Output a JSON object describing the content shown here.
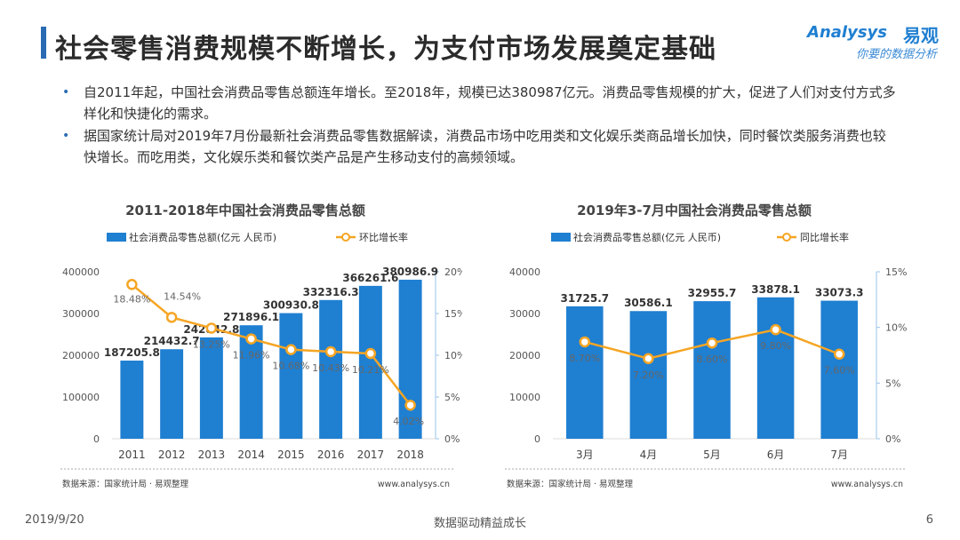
{
  "header": {
    "title": "社会零售消费规模不断增长，为支付市场发展奠定基础",
    "logo_en": "Analysys",
    "logo_cn": "易观",
    "logo_slogan": "你要的数据分析"
  },
  "bullets": [
    "自2011年起，中国社会消费品零售总额连年增长。至2018年，规模已达380987亿元。消费品零售规模的扩大，促进了人们对支付方式多样化和快捷化的需求。",
    "据国家统计局对2019年7月份最新社会消费品零售数据解读，消费品市场中吃用类和文化娱乐类商品增长加快，同时餐饮类服务消费也较快增长。而吃用类，文化娱乐类和餐饮类产品是产生移动支付的高频领域。"
  ],
  "footer": {
    "date": "2019/9/20",
    "center": "数据驱动精益成长",
    "page": "6"
  },
  "colors": {
    "bar": "#1f7fd1",
    "line": "#f5a524",
    "title_bar": "#2a6bb3"
  },
  "chart_data": [
    {
      "type": "bar",
      "title": "2011-2018年中国社会消费品零售总额",
      "categories": [
        "2011",
        "2012",
        "2013",
        "2014",
        "2015",
        "2016",
        "2017",
        "2018"
      ],
      "series": [
        {
          "name": "社会消费品零售总额(亿元 人民币)",
          "type": "bar",
          "axis": "left",
          "values": [
            187205.8,
            214432.7,
            242842.8,
            271896.1,
            300930.8,
            332316.3,
            366261.6,
            380986.9
          ],
          "labels": [
            "187205.8",
            "214432.7",
            "242842.8",
            "271896.1",
            "300930.8",
            "332316.3",
            "366261.6",
            "380986.9"
          ]
        },
        {
          "name": "环比增长率",
          "type": "line",
          "axis": "right",
          "values": [
            18.48,
            14.54,
            13.25,
            11.96,
            10.68,
            10.43,
            10.21,
            4.02
          ],
          "labels": [
            "18.48%",
            "14.54%",
            "13.25%",
            "11.96%",
            "10.68%",
            "10.43%",
            "10.21%",
            "4.02%"
          ]
        }
      ],
      "ylim": [
        0,
        400000
      ],
      "yticks": [
        "0",
        "100000",
        "200000",
        "300000",
        "400000"
      ],
      "y2lim": [
        0,
        20
      ],
      "y2ticks": [
        "0%",
        "5%",
        "10%",
        "15%",
        "20%"
      ],
      "source": "数据来源：国家统计局 · 易观整理",
      "site": "www.analysys.cn"
    },
    {
      "type": "bar",
      "title": "2019年3-7月中国社会消费品零售总额",
      "categories": [
        "3月",
        "4月",
        "5月",
        "6月",
        "7月"
      ],
      "series": [
        {
          "name": "社会消费品零售总额(亿元 人民币)",
          "type": "bar",
          "axis": "left",
          "values": [
            31725.7,
            30586.1,
            32955.7,
            33878.1,
            33073.3
          ],
          "labels": [
            "31725.7",
            "30586.1",
            "32955.7",
            "33878.1",
            "33073.3"
          ]
        },
        {
          "name": "同比增长率",
          "type": "line",
          "axis": "right",
          "values": [
            8.7,
            7.2,
            8.6,
            9.8,
            7.6
          ],
          "labels": [
            "8.70%",
            "7.20%",
            "8.60%",
            "9.80%",
            "7.60%"
          ]
        }
      ],
      "ylim": [
        0,
        40000
      ],
      "yticks": [
        "0",
        "10000",
        "20000",
        "30000",
        "40000"
      ],
      "y2lim": [
        0,
        15
      ],
      "y2ticks": [
        "0%",
        "5%",
        "10%",
        "15%"
      ],
      "source": "数据来源：国家统计局 · 易观整理",
      "site": "www.analysys.cn"
    }
  ]
}
